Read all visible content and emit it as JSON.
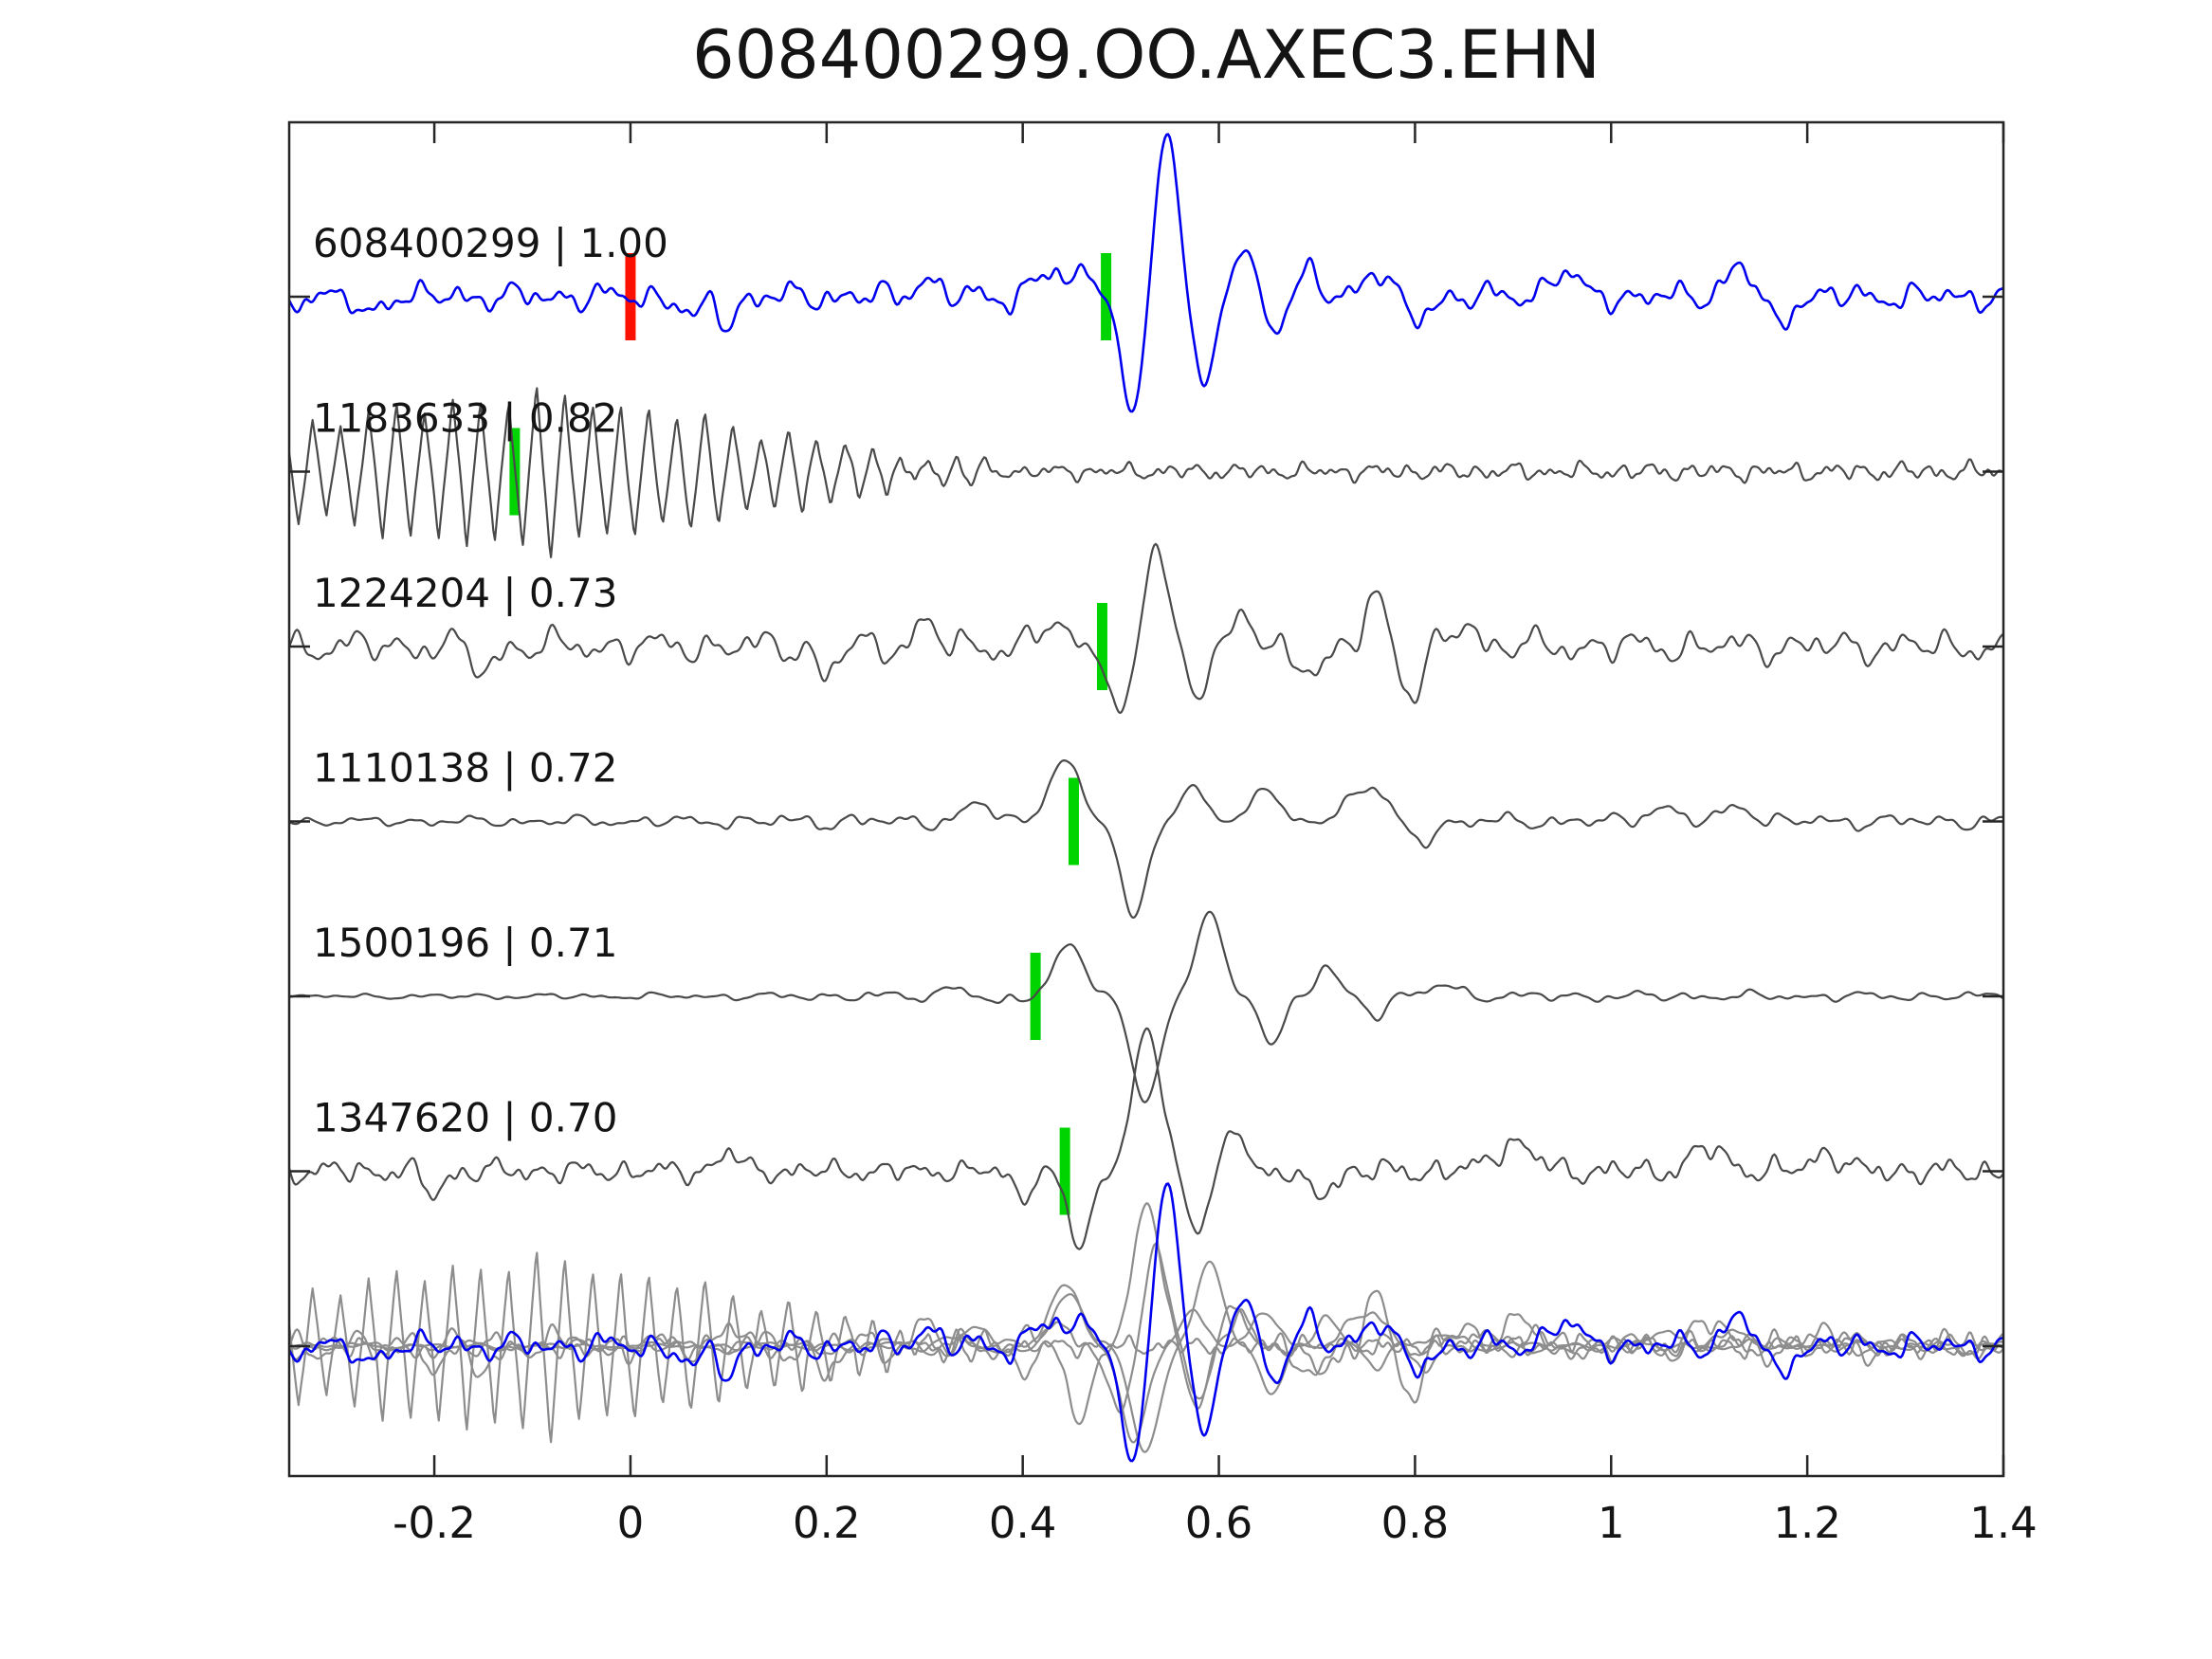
{
  "chart_data": {
    "type": "line",
    "subtype": "seismic-waveform-correlation",
    "title": "608400299.OO.AXEC3.EHN",
    "grid": false,
    "legend": false,
    "x_axis": {
      "xlim": [
        -0.348,
        1.4
      ],
      "ticks": [
        -0.2,
        0,
        0.2,
        0.4,
        0.6,
        0.8,
        1,
        1.2,
        1.4
      ],
      "tick_labels": [
        "-0.2",
        "0",
        "0.2",
        "0.4",
        "0.6",
        "0.8",
        "1",
        "1.2",
        "1.4"
      ]
    },
    "colors": {
      "template": "#0000ee",
      "match": "#4a4a4a",
      "overlay_gray": "#8d8d8d",
      "pick_green": "#00d400",
      "pick_red": "#ff1100",
      "axis": "#262626",
      "text": "#141414",
      "background": "#ffffff"
    },
    "traces": [
      {
        "id": "608400299",
        "correlation": "1.00",
        "label": "608400299 | 1.00",
        "row": 0,
        "color_key": "template",
        "overlay_scale": 1.0,
        "markers": [
          {
            "x": 0.0,
            "color_key": "pick_red"
          },
          {
            "x": 0.485,
            "color_key": "pick_green"
          }
        ],
        "waveform": {
          "seed": 7,
          "noise": {
            "amp": 14,
            "freq": 21,
            "env": [
              [
                -0.35,
                1
              ],
              [
                0.3,
                1.05
              ],
              [
                0.44,
                1.2
              ],
              [
                0.49,
                0.35
              ],
              [
                0.62,
                0.5
              ],
              [
                0.7,
                1
              ],
              [
                1.4,
                1
              ]
            ]
          },
          "bumps": [
            {
              "t": -0.27,
              "w": 0.012,
              "a": -24
            },
            {
              "t": 0.063,
              "w": 0.013,
              "a": -26
            },
            {
              "t": 0.1,
              "w": 0.012,
              "a": -28
            },
            {
              "t": 0.3,
              "w": 0.015,
              "a": 20
            },
            {
              "t": 0.425,
              "w": 0.018,
              "a": 26
            },
            {
              "t": 0.465,
              "w": 0.015,
              "a": 30
            },
            {
              "t": 0.512,
              "w": 0.016,
              "a": -125
            },
            {
              "t": 0.547,
              "w": 0.017,
              "a": 170
            },
            {
              "t": 0.585,
              "w": 0.015,
              "a": -95
            },
            {
              "t": 0.625,
              "w": 0.014,
              "a": 52
            },
            {
              "t": 0.657,
              "w": 0.013,
              "a": -33
            },
            {
              "t": 0.69,
              "w": 0.013,
              "a": 24
            },
            {
              "t": 0.76,
              "w": 0.02,
              "a": 28
            },
            {
              "t": 0.8,
              "w": 0.018,
              "a": -24
            },
            {
              "t": 0.95,
              "w": 0.02,
              "a": 26
            },
            {
              "t": 1.13,
              "w": 0.02,
              "a": 30
            },
            {
              "t": 1.17,
              "w": 0.015,
              "a": -30
            }
          ],
          "packets": []
        }
      },
      {
        "id": "1183633",
        "correlation": "0.82",
        "label": "1183633 | 0.82",
        "row": 1,
        "color_key": "match",
        "overlay_scale": 1.12,
        "markers": [
          {
            "x": -0.118,
            "color_key": "pick_green"
          }
        ],
        "waveform": {
          "seed": 13,
          "noise": {
            "amp": 10,
            "freq": 28,
            "env": [
              [
                -0.35,
                0.55
              ],
              [
                0.4,
                0.8
              ],
              [
                1.4,
                1
              ]
            ]
          },
          "bumps": [],
          "packets": [
            {
              "f": 35,
              "t0": -0.36,
              "t1": 0.42,
              "env": [
                [
                  -0.36,
                  45
                ],
                [
                  -0.28,
                  62
                ],
                [
                  -0.18,
                  74
                ],
                [
                  -0.1,
                  85
                ],
                [
                  -0.02,
                  74
                ],
                [
                  0.06,
                  60
                ],
                [
                  0.14,
                  46
                ],
                [
                  0.22,
                  30
                ],
                [
                  0.3,
                  15
                ],
                [
                  0.36,
                  8
                ],
                [
                  0.42,
                  0
                ]
              ]
            }
          ]
        }
      },
      {
        "id": "1224204",
        "correlation": "0.73",
        "label": "1224204 | 0.73",
        "row": 2,
        "color_key": "match",
        "overlay_scale": 1.0,
        "markers": [
          {
            "x": 0.481,
            "color_key": "pick_green"
          }
        ],
        "waveform": {
          "seed": 29,
          "noise": {
            "amp": 17,
            "freq": 19,
            "env": [
              [
                -0.35,
                1
              ],
              [
                0.42,
                1
              ],
              [
                0.48,
                0.5
              ],
              [
                0.6,
                0.6
              ],
              [
                0.66,
                1
              ],
              [
                1.4,
                1
              ]
            ]
          },
          "bumps": [
            {
              "t": -0.15,
              "w": 0.015,
              "a": -25
            },
            {
              "t": 0.2,
              "w": 0.013,
              "a": -32
            },
            {
              "t": 0.3,
              "w": 0.015,
              "a": 24
            },
            {
              "t": 0.43,
              "w": 0.02,
              "a": 22
            },
            {
              "t": 0.5,
              "w": 0.015,
              "a": -75
            },
            {
              "t": 0.536,
              "w": 0.016,
              "a": 105
            },
            {
              "t": 0.578,
              "w": 0.014,
              "a": -48
            },
            {
              "t": 0.625,
              "w": 0.014,
              "a": 32
            },
            {
              "t": 0.7,
              "w": 0.02,
              "a": -28
            },
            {
              "t": 0.76,
              "w": 0.016,
              "a": 55
            },
            {
              "t": 0.797,
              "w": 0.015,
              "a": -55
            },
            {
              "t": 0.85,
              "w": 0.015,
              "a": 28
            }
          ],
          "packets": []
        }
      },
      {
        "id": "1110138",
        "correlation": "0.72",
        "label": "1110138 | 0.72",
        "row": 3,
        "color_key": "match",
        "overlay_scale": 1.0,
        "markers": [
          {
            "x": 0.452,
            "color_key": "pick_green"
          }
        ],
        "waveform": {
          "seed": 41,
          "noise": {
            "amp": 9,
            "freq": 18,
            "env": [
              [
                -0.35,
                0.5
              ],
              [
                0.05,
                0.7
              ],
              [
                0.2,
                1
              ],
              [
                0.42,
                0.7
              ],
              [
                0.49,
                0.35
              ],
              [
                0.62,
                0.6
              ],
              [
                0.8,
                0.9
              ],
              [
                1.4,
                0.9
              ]
            ]
          },
          "bumps": [
            {
              "t": 0.355,
              "w": 0.02,
              "a": 18
            },
            {
              "t": 0.442,
              "w": 0.022,
              "a": 64
            },
            {
              "t": 0.513,
              "w": 0.018,
              "a": -100
            },
            {
              "t": 0.575,
              "w": 0.016,
              "a": 38
            },
            {
              "t": 0.645,
              "w": 0.016,
              "a": 40
            },
            {
              "t": 0.75,
              "w": 0.026,
              "a": 38
            },
            {
              "t": 0.805,
              "w": 0.02,
              "a": -20
            },
            {
              "t": 1.05,
              "w": 0.02,
              "a": 16
            },
            {
              "t": 1.13,
              "w": 0.018,
              "a": 18
            }
          ],
          "packets": []
        }
      },
      {
        "id": "1500196",
        "correlation": "0.71",
        "label": "1500196 | 0.71",
        "row": 4,
        "color_key": "match",
        "overlay_scale": 1.0,
        "markers": [
          {
            "x": 0.413,
            "color_key": "pick_green"
          }
        ],
        "waveform": {
          "seed": 57,
          "noise": {
            "amp": 6,
            "freq": 17,
            "env": [
              [
                -0.35,
                0.4
              ],
              [
                0.1,
                0.6
              ],
              [
                0.28,
                1
              ],
              [
                0.44,
                1
              ],
              [
                0.52,
                0.4
              ],
              [
                0.7,
                1
              ],
              [
                1.4,
                0.8
              ]
            ]
          },
          "bumps": [
            {
              "t": 0.33,
              "w": 0.014,
              "a": 12
            },
            {
              "t": 0.375,
              "w": 0.013,
              "a": -10
            },
            {
              "t": 0.447,
              "w": 0.021,
              "a": 55
            },
            {
              "t": 0.525,
              "w": 0.02,
              "a": -110
            },
            {
              "t": 0.59,
              "w": 0.018,
              "a": 90
            },
            {
              "t": 0.655,
              "w": 0.016,
              "a": -48
            },
            {
              "t": 0.71,
              "w": 0.015,
              "a": 30
            },
            {
              "t": 0.76,
              "w": 0.014,
              "a": -18
            },
            {
              "t": 0.83,
              "w": 0.02,
              "a": 12
            }
          ],
          "packets": []
        }
      },
      {
        "id": "1347620",
        "correlation": "0.70",
        "label": "1347620 | 0.70",
        "row": 5,
        "color_key": "match",
        "overlay_scale": 1.0,
        "markers": [
          {
            "x": 0.443,
            "color_key": "pick_green"
          }
        ],
        "waveform": {
          "seed": 71,
          "noise": {
            "amp": 13,
            "freq": 23,
            "env": [
              [
                -0.35,
                1
              ],
              [
                0.4,
                0.8
              ],
              [
                0.48,
                0.4
              ],
              [
                0.6,
                0.6
              ],
              [
                0.7,
                1
              ],
              [
                1.4,
                1
              ]
            ]
          },
          "bumps": [
            {
              "t": -0.2,
              "w": 0.014,
              "a": -24
            },
            {
              "t": 0.1,
              "w": 0.015,
              "a": 20
            },
            {
              "t": 0.4,
              "w": 0.014,
              "a": -24
            },
            {
              "t": 0.458,
              "w": 0.016,
              "a": -80
            },
            {
              "t": 0.527,
              "w": 0.02,
              "a": 148
            },
            {
              "t": 0.578,
              "w": 0.015,
              "a": -62
            },
            {
              "t": 0.617,
              "w": 0.014,
              "a": 46
            },
            {
              "t": 0.7,
              "w": 0.02,
              "a": -24
            },
            {
              "t": 0.9,
              "w": 0.028,
              "a": 30
            },
            {
              "t": 1.1,
              "w": 0.024,
              "a": 24
            },
            {
              "t": 1.22,
              "w": 0.02,
              "a": 20
            }
          ],
          "packets": []
        }
      }
    ],
    "overlay": {
      "description": "all traces superimposed, matches gray, template blue on top",
      "row": 6
    }
  }
}
